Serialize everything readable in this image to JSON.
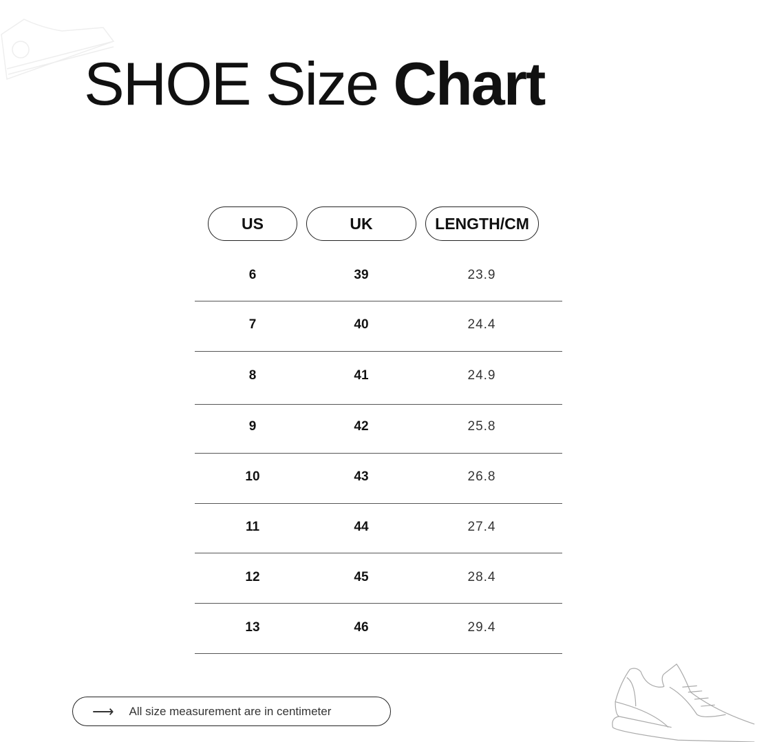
{
  "title": {
    "regular": "SHOE Size",
    "bold": "Chart"
  },
  "table": {
    "headers": [
      "US",
      "UK",
      "LENGTH/CM"
    ],
    "rows": [
      [
        "6",
        "39",
        "23.9"
      ],
      [
        "7",
        "40",
        "24.4"
      ],
      [
        "8",
        "41",
        "24.9"
      ],
      [
        "9",
        "42",
        "25.8"
      ],
      [
        "10",
        "43",
        "26.8"
      ],
      [
        "11",
        "44",
        "27.4"
      ],
      [
        "12",
        "45",
        "28.4"
      ],
      [
        "13",
        "46",
        "29.4"
      ]
    ]
  },
  "footer": {
    "icon": "arrow-right-icon",
    "text": "All size measurement are in centimeter"
  }
}
